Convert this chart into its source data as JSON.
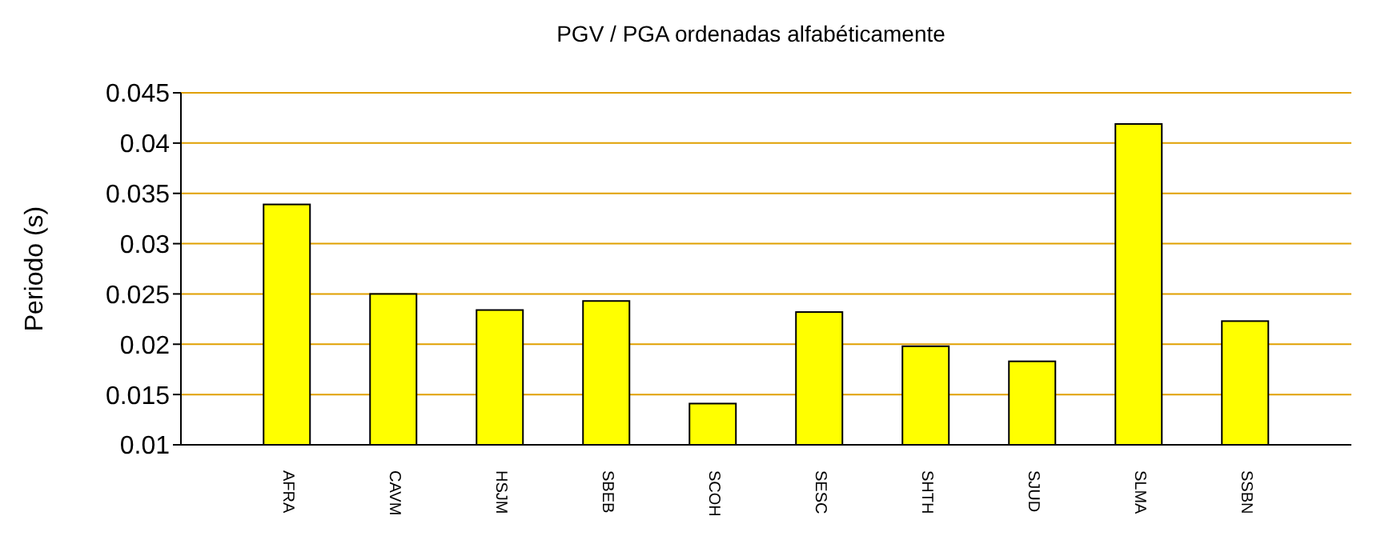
{
  "chart_data": {
    "type": "bar",
    "title": "PGV / PGA ordenadas alfabéticamente",
    "ylabel": "Periodo (s)",
    "categories": [
      "AFRA",
      "CAVM",
      "HSJM",
      "SBEB",
      "SCOH",
      "SESC",
      "SHTH",
      "SJUD",
      "SLMA",
      "SSBN"
    ],
    "values": [
      0.0339,
      0.025,
      0.0234,
      0.0243,
      0.0141,
      0.0232,
      0.0198,
      0.0183,
      0.0419,
      0.0223
    ],
    "color": "#ffff00",
    "ylim": [
      0.01,
      0.045
    ],
    "yticks": [
      0.01,
      0.015,
      0.02,
      0.025,
      0.03,
      0.035,
      0.04,
      0.045
    ],
    "grid": "y",
    "legend": false
  }
}
